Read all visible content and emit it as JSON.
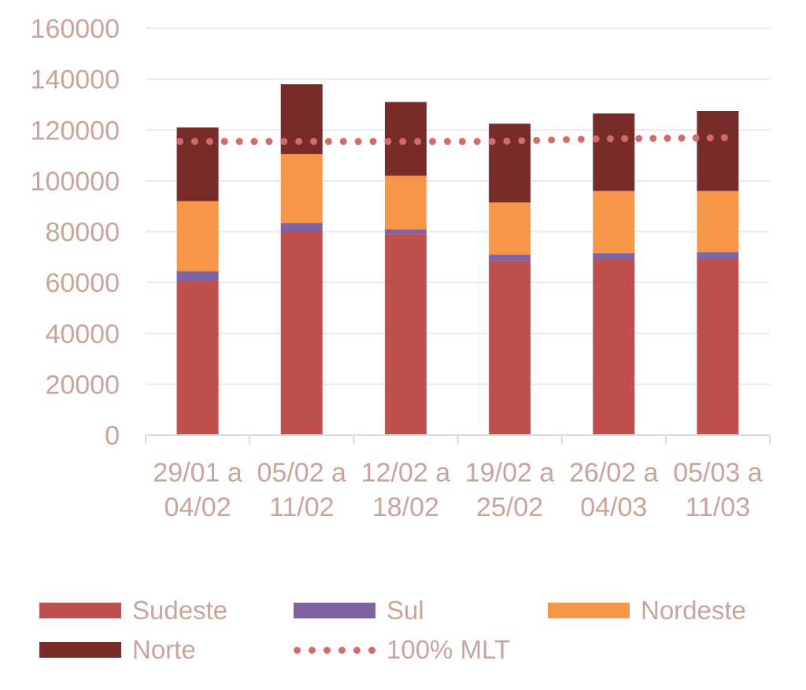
{
  "chart_data": {
    "type": "bar",
    "stacked": true,
    "categories": [
      [
        "29/01 a",
        "04/02"
      ],
      [
        "05/02 a",
        "11/02"
      ],
      [
        "12/02 a",
        "18/02"
      ],
      [
        "19/02 a",
        "25/02"
      ],
      [
        "26/02 a",
        "04/03"
      ],
      [
        "05/03 a",
        "11/03"
      ]
    ],
    "series": [
      {
        "name": "Sudeste",
        "color": "#c0504d",
        "values": [
          60500,
          80000,
          79000,
          68500,
          69000,
          69000
        ]
      },
      {
        "name": "Sul",
        "color": "#8064a2",
        "values": [
          4000,
          3500,
          2000,
          2500,
          2500,
          3000
        ]
      },
      {
        "name": "Nordeste",
        "color": "#f79646",
        "values": [
          27500,
          27000,
          21000,
          20500,
          24500,
          24000
        ]
      },
      {
        "name": "Norte",
        "color": "#772c2a",
        "values": [
          29000,
          27500,
          29000,
          31000,
          30500,
          31500
        ]
      }
    ],
    "line": {
      "name": "100% MLT",
      "color": "#d46b6b",
      "style": "dotted",
      "values": [
        115500,
        115500,
        115500,
        115500,
        116500,
        117000
      ]
    },
    "yticks": [
      "0",
      "20000",
      "40000",
      "60000",
      "80000",
      "100000",
      "120000",
      "140000",
      "160000"
    ],
    "ylim": [
      0,
      160000
    ],
    "grid": true,
    "legend_position": "bottom",
    "colors": {
      "axis_text": "#c9a49a",
      "grid": "#f2e6e6",
      "axis": "#e6d6d6"
    }
  }
}
